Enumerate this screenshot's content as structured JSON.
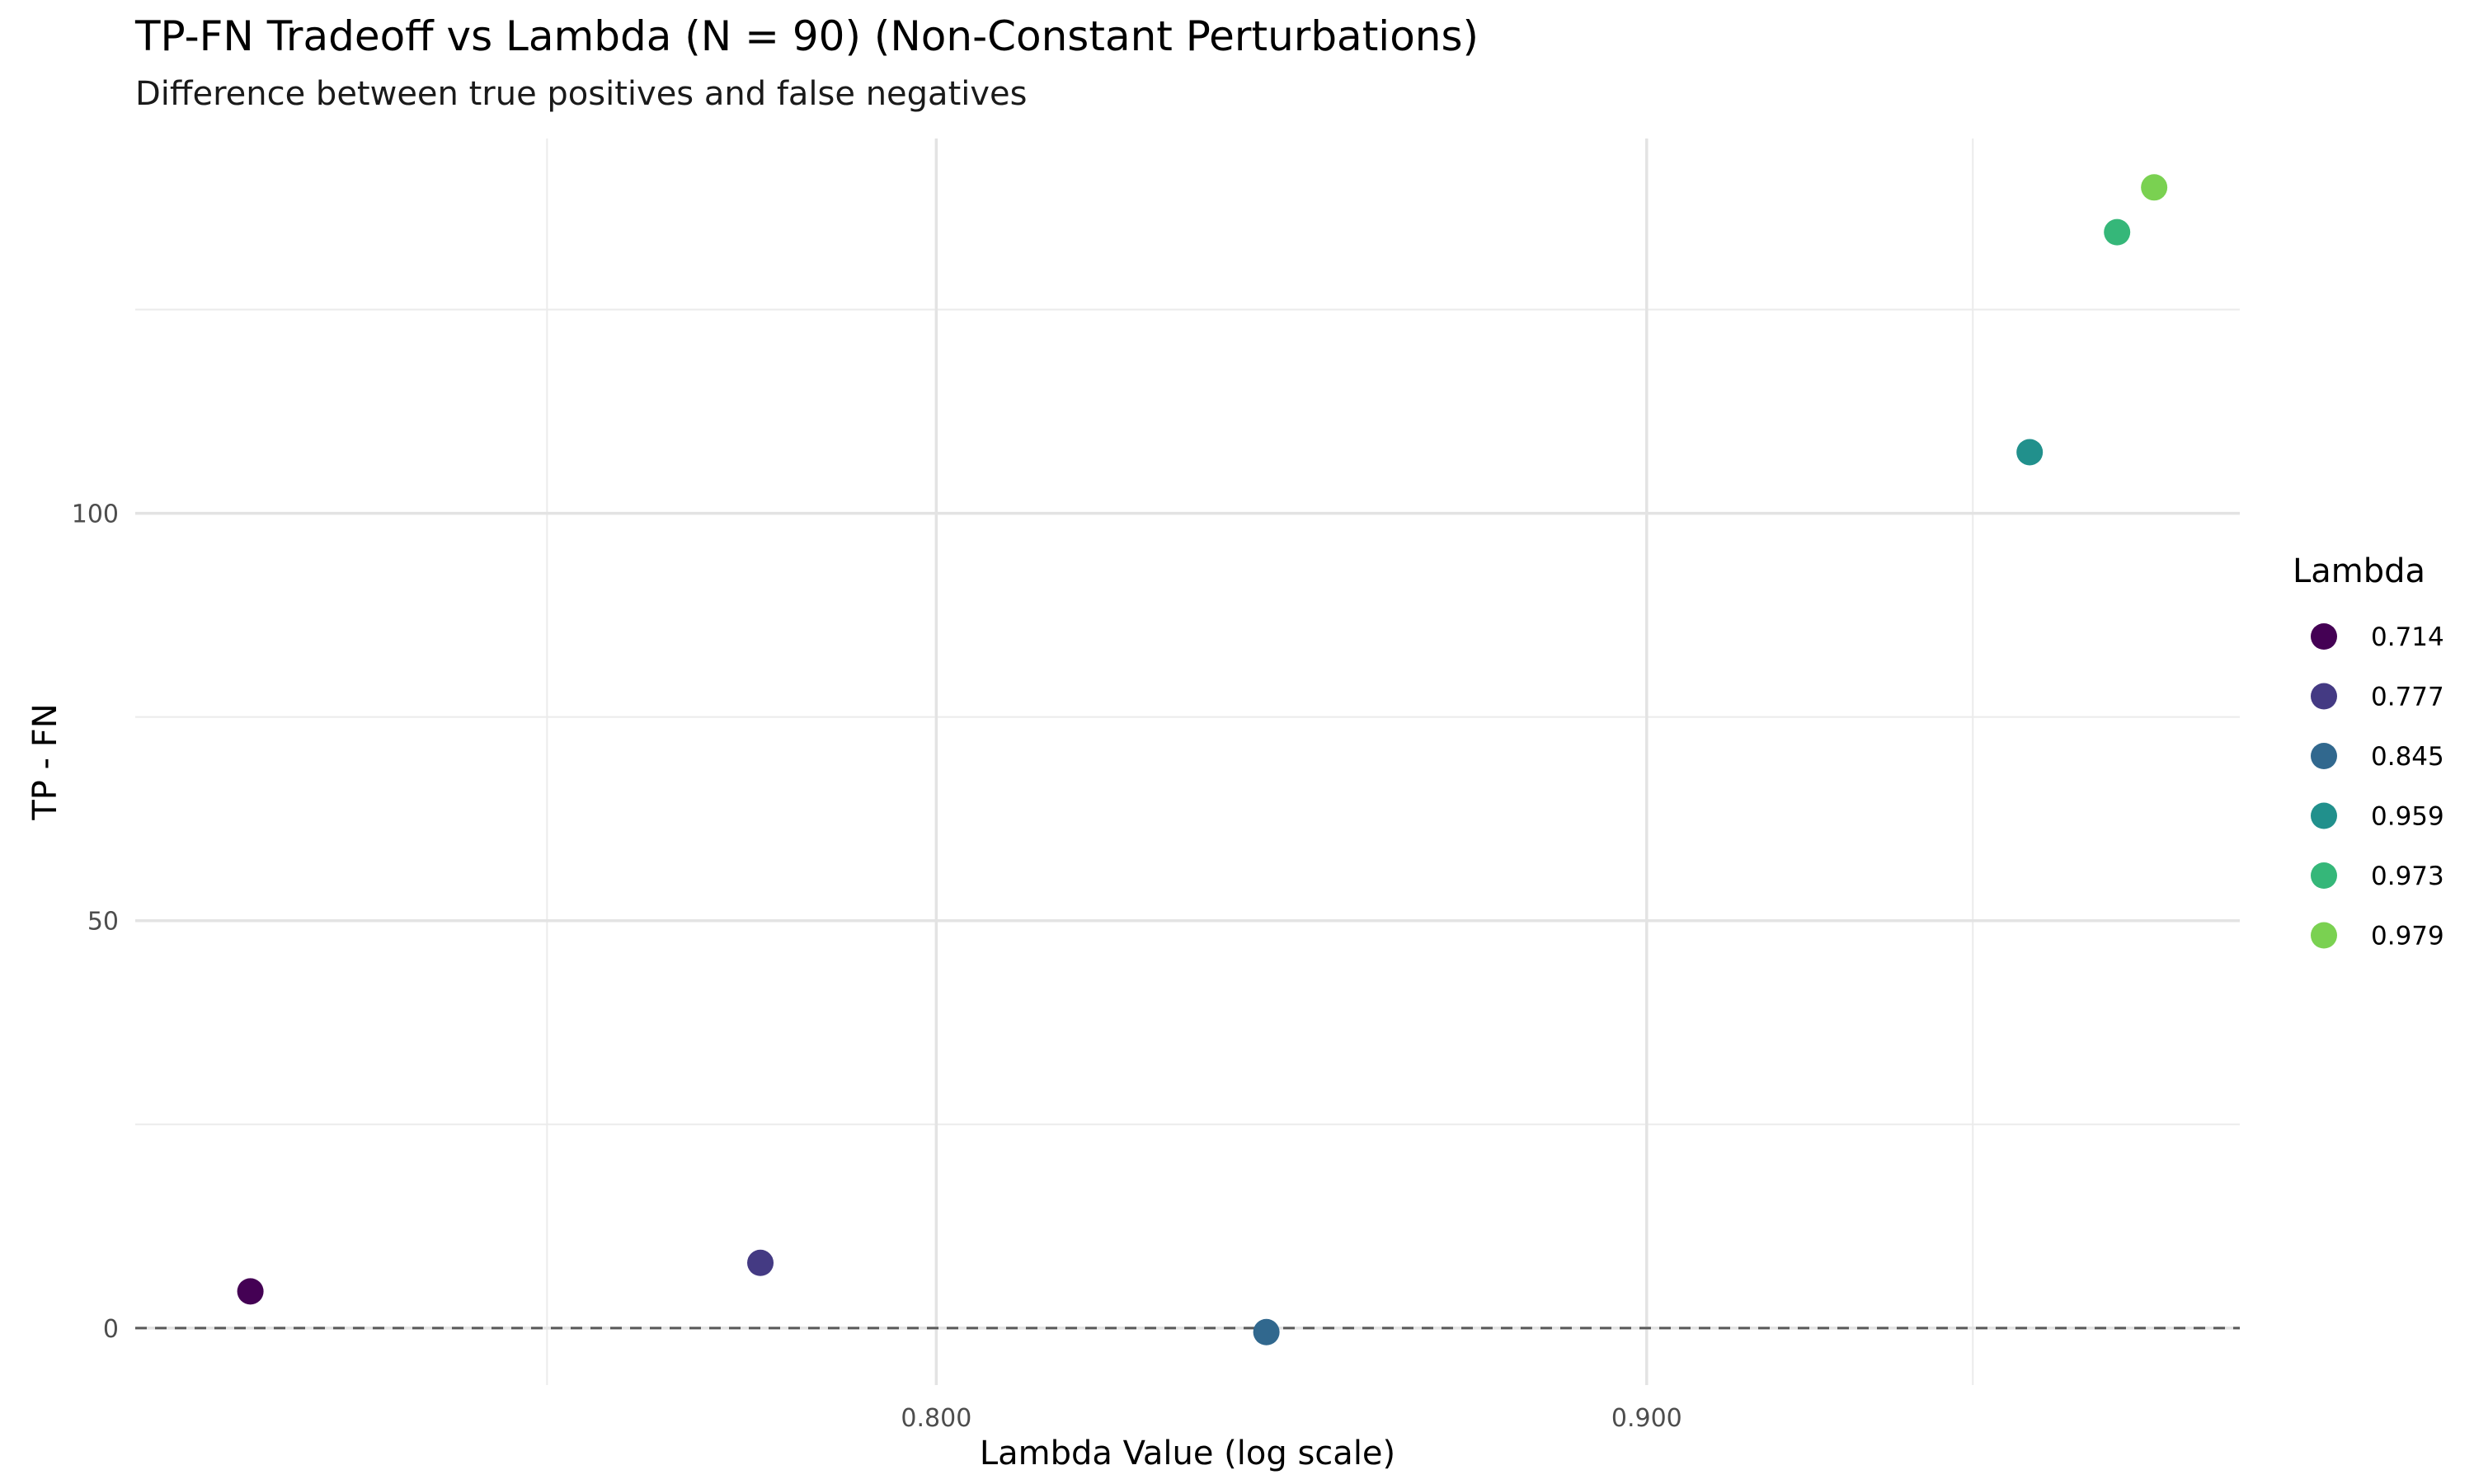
{
  "chart_data": {
    "type": "scatter",
    "title": "TP-FN Tradeoff vs Lambda (N = 90) (Non-Constant Perturbations)",
    "subtitle": "Difference between true positives and false negatives",
    "xlabel": "Lambda Value (log scale)",
    "ylabel": "TP - FN",
    "x_scale": "log",
    "xlim": [
      0.7005,
      0.993
    ],
    "ylim": [
      -7,
      146
    ],
    "x_ticks": [
      0.8,
      0.9
    ],
    "x_tick_labels": [
      "0.800",
      "0.900"
    ],
    "x_minor_ticks": [
      0.75,
      0.95
    ],
    "y_ticks": [
      0,
      50,
      100
    ],
    "y_tick_labels": [
      "0",
      "50",
      "100"
    ],
    "y_minor_ticks": [
      25,
      75,
      125
    ],
    "grid": true,
    "reference_line": {
      "y": 0,
      "style": "dashed"
    },
    "legend": {
      "title": "Lambda",
      "position": "right",
      "entries": [
        "0.714",
        "0.777",
        "0.845",
        "0.959",
        "0.973",
        "0.979"
      ]
    },
    "points": [
      {
        "x": 0.714,
        "y": 4.5,
        "label": "0.714",
        "color": "#440154"
      },
      {
        "x": 0.777,
        "y": 8,
        "label": "0.777",
        "color": "#443A83"
      },
      {
        "x": 0.845,
        "y": -0.5,
        "label": "0.845",
        "color": "#31688E"
      },
      {
        "x": 0.959,
        "y": 107.5,
        "label": "0.959",
        "color": "#21908C"
      },
      {
        "x": 0.973,
        "y": 134.5,
        "label": "0.973",
        "color": "#35B779"
      },
      {
        "x": 0.979,
        "y": 140,
        "label": "0.979",
        "color": "#7AD151"
      }
    ]
  }
}
